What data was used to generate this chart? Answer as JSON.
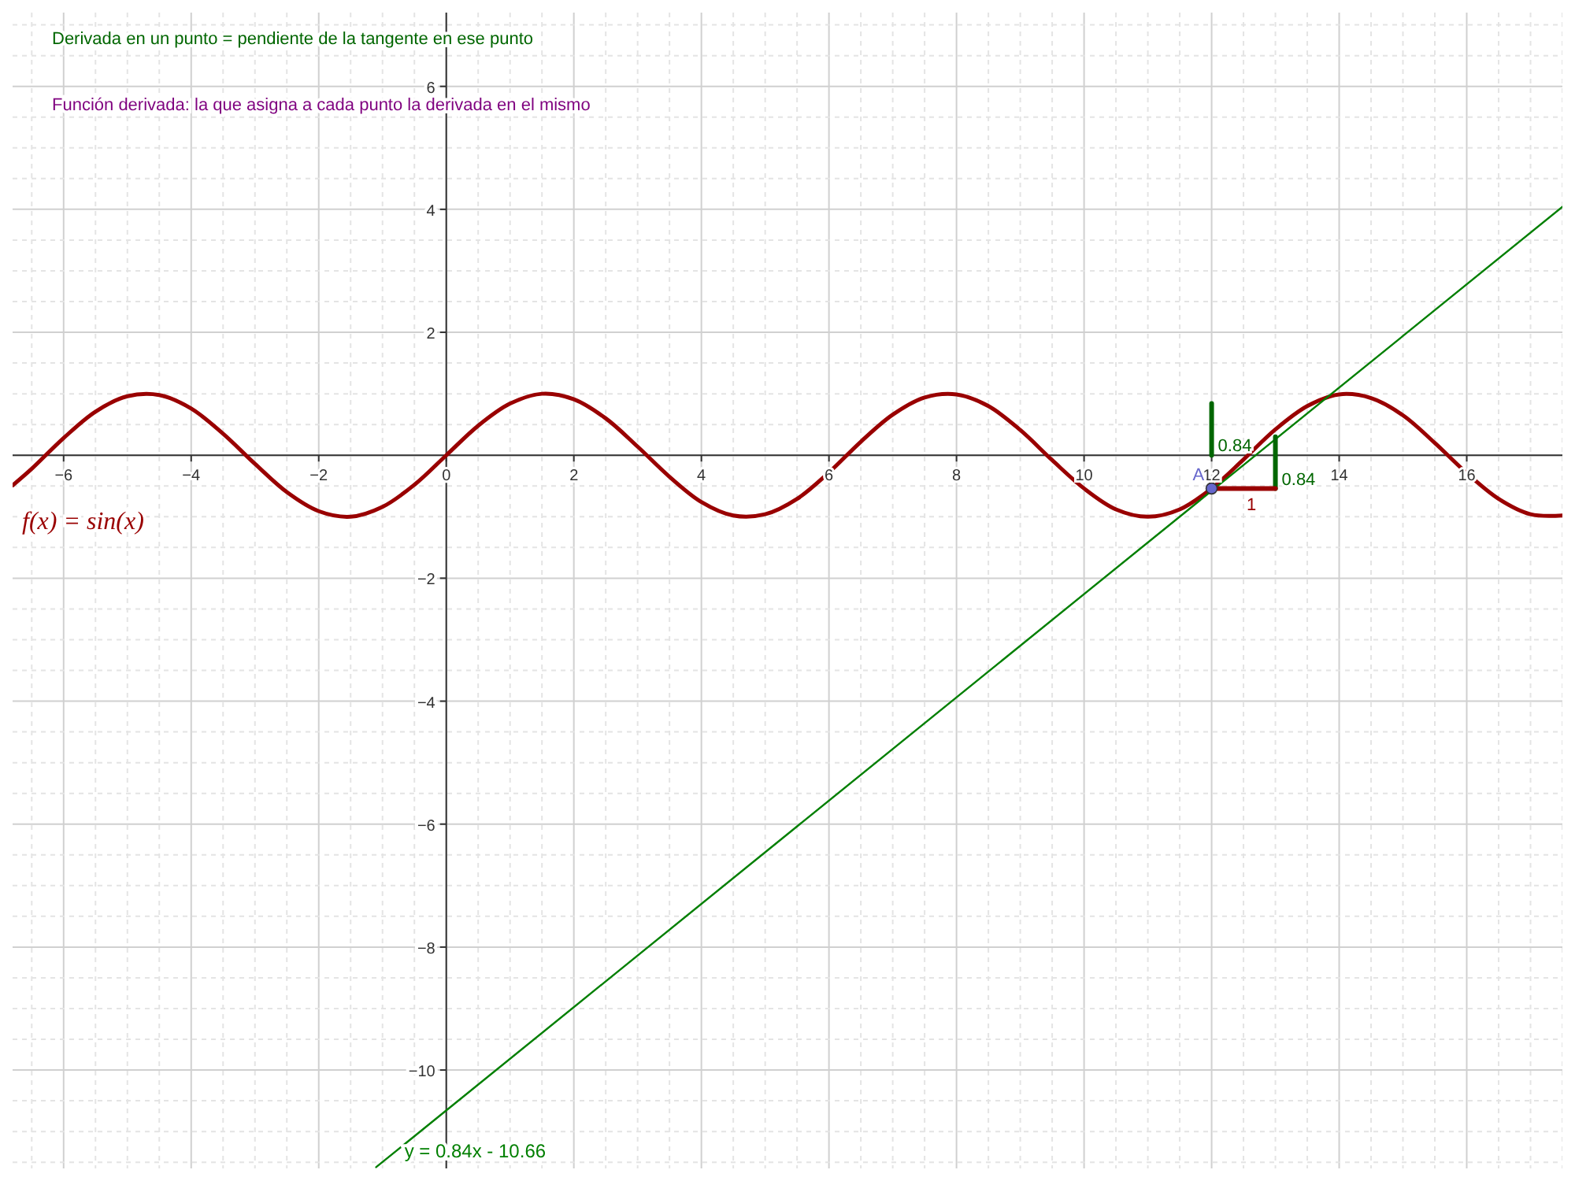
{
  "chart_data": {
    "type": "line",
    "xlim": [
      -6.8,
      17.5
    ],
    "ylim": [
      -11.6,
      7.2
    ],
    "xticks": [
      -6,
      -4,
      -2,
      0,
      2,
      4,
      6,
      8,
      10,
      12,
      14,
      16
    ],
    "yticks": [
      -10,
      -8,
      -6,
      -4,
      -2,
      2,
      4,
      6
    ],
    "grid": true,
    "line_style": "solid",
    "annotations": [
      "Derivada en un punto = pendiente de la tangente en ese punto",
      "Función derivada: la que asigna a cada punto la derivada en el mismo",
      {
        "text": "0.84",
        "x": 12,
        "y": 0.42
      },
      {
        "text": "0.84",
        "x": 13,
        "y": -0.12
      },
      {
        "text": "1",
        "x": 12.45,
        "y": -0.54
      },
      {
        "text": "A",
        "x": 12,
        "y": -0.54
      }
    ],
    "series": [
      {
        "name": "f(x) = sin(x)",
        "color": "#990000",
        "x": [
          -6.8,
          -6.5,
          -6,
          -5.5,
          -5,
          -4.5,
          -4,
          -3.5,
          -3,
          -2.5,
          -2,
          -1.5,
          -1,
          -0.5,
          0,
          0.5,
          1,
          1.5,
          2,
          2.5,
          3,
          3.5,
          4,
          4.5,
          5,
          5.5,
          6,
          6.5,
          7,
          7.5,
          8,
          8.5,
          9,
          9.5,
          10,
          10.5,
          11,
          11.5,
          12,
          12.5,
          13,
          13.5,
          14,
          14.5,
          15,
          15.5,
          16,
          16.5,
          17,
          17.5
        ],
        "values": [
          -0.49,
          -0.22,
          0.28,
          0.71,
          0.96,
          0.98,
          0.76,
          0.35,
          -0.14,
          -0.6,
          -0.91,
          -1.0,
          -0.84,
          -0.48,
          0,
          0.48,
          0.84,
          1.0,
          0.91,
          0.6,
          0.14,
          -0.35,
          -0.76,
          -0.98,
          -0.96,
          -0.71,
          -0.28,
          0.22,
          0.66,
          0.94,
          0.99,
          0.8,
          0.41,
          -0.08,
          -0.54,
          -0.88,
          -1.0,
          -0.88,
          -0.54,
          -0.07,
          0.42,
          0.8,
          0.99,
          0.93,
          0.65,
          0.2,
          -0.29,
          -0.71,
          -0.96,
          -0.98
        ]
      },
      {
        "name": "y = 0.84x - 10.66",
        "color": "#007f00",
        "x": [
          -1.1,
          17.5
        ],
        "values": [
          -11.58,
          4.04
        ]
      },
      {
        "color": "#006600",
        "x": [
          12,
          12
        ],
        "values": [
          0,
          0.84
        ]
      },
      {
        "color": "#006600",
        "x": [
          13,
          13
        ],
        "values": [
          -0.54,
          0.3
        ]
      },
      {
        "color": "#990000",
        "x": [
          12,
          13
        ],
        "values": [
          -0.54,
          -0.54
        ]
      },
      {
        "type": "scatter",
        "color": "#6666cc",
        "x": [
          12
        ],
        "values": [
          -0.54
        ]
      }
    ]
  }
}
